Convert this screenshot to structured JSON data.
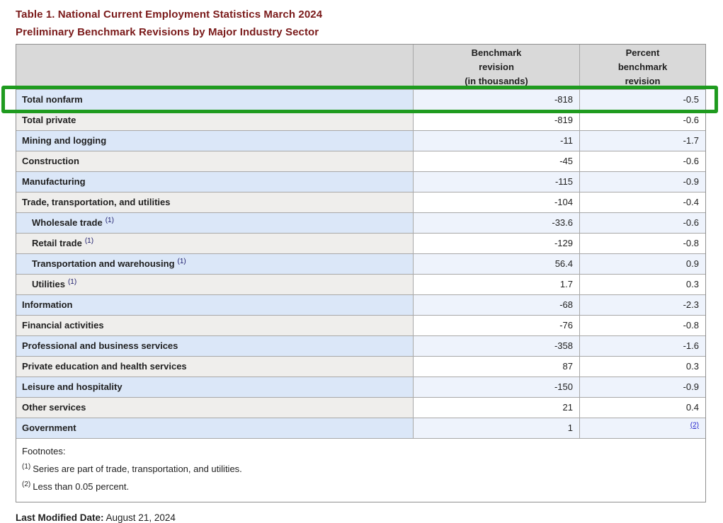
{
  "page": {
    "title_line1": "Table 1. National Current Employment Statistics March 2024",
    "title_line2": "Preliminary Benchmark Revisions by Major Industry Sector",
    "last_modified_label": "Last Modified Date:",
    "last_modified_value": "August 21, 2024"
  },
  "colors": {
    "title_maroon": "#7a1a1a",
    "header_bg": "#d9d9d9",
    "row_blue_label": "#dbe7f8",
    "row_blue_value": "#eef3fc",
    "row_grey_label": "#efeeec",
    "row_grey_value": "#ffffff",
    "highlight_green": "#1f9b1f",
    "link_blue": "#2222cc"
  },
  "highlight": {
    "target_row": "Total nonfarm",
    "color": "#1f9b1f"
  },
  "table": {
    "header": {
      "col2_lines": [
        "Benchmark",
        "revision",
        "(in thousands)"
      ],
      "col3_lines": [
        "Percent",
        "benchmark",
        "revision"
      ]
    },
    "rows": [
      {
        "label": "Total nonfarm",
        "marker": "",
        "value": "-818",
        "percent": "-0.5",
        "indent": false,
        "shade": "blue",
        "percent_link": false,
        "highlighted": true
      },
      {
        "label": "Total private",
        "marker": "",
        "value": "-819",
        "percent": "-0.6",
        "indent": false,
        "shade": "grey",
        "percent_link": false,
        "highlighted": false
      },
      {
        "label": "Mining and logging",
        "marker": "",
        "value": "-11",
        "percent": "-1.7",
        "indent": false,
        "shade": "blue",
        "percent_link": false,
        "highlighted": false
      },
      {
        "label": "Construction",
        "marker": "",
        "value": "-45",
        "percent": "-0.6",
        "indent": false,
        "shade": "grey",
        "percent_link": false,
        "highlighted": false
      },
      {
        "label": "Manufacturing",
        "marker": "",
        "value": "-115",
        "percent": "-0.9",
        "indent": false,
        "shade": "blue",
        "percent_link": false,
        "highlighted": false
      },
      {
        "label": "Trade, transportation, and utilities",
        "marker": "",
        "value": "-104",
        "percent": "-0.4",
        "indent": false,
        "shade": "grey",
        "percent_link": false,
        "highlighted": false
      },
      {
        "label": "Wholesale trade",
        "marker": "(1)",
        "value": "-33.6",
        "percent": "-0.6",
        "indent": true,
        "shade": "blue",
        "percent_link": false,
        "highlighted": false
      },
      {
        "label": "Retail trade",
        "marker": "(1)",
        "value": "-129",
        "percent": "-0.8",
        "indent": true,
        "shade": "grey",
        "percent_link": false,
        "highlighted": false
      },
      {
        "label": "Transportation and warehousing",
        "marker": "(1)",
        "value": "56.4",
        "percent": "0.9",
        "indent": true,
        "shade": "blue",
        "percent_link": false,
        "highlighted": false
      },
      {
        "label": "Utilities",
        "marker": "(1)",
        "value": "1.7",
        "percent": "0.3",
        "indent": true,
        "shade": "grey",
        "percent_link": false,
        "highlighted": false
      },
      {
        "label": "Information",
        "marker": "",
        "value": "-68",
        "percent": "-2.3",
        "indent": false,
        "shade": "blue",
        "percent_link": false,
        "highlighted": false
      },
      {
        "label": "Financial activities",
        "marker": "",
        "value": "-76",
        "percent": "-0.8",
        "indent": false,
        "shade": "grey",
        "percent_link": false,
        "highlighted": false
      },
      {
        "label": "Professional and business services",
        "marker": "",
        "value": "-358",
        "percent": "-1.6",
        "indent": false,
        "shade": "blue",
        "percent_link": false,
        "highlighted": false
      },
      {
        "label": "Private education and health services",
        "marker": "",
        "value": "87",
        "percent": "0.3",
        "indent": false,
        "shade": "grey",
        "percent_link": false,
        "highlighted": false
      },
      {
        "label": "Leisure and hospitality",
        "marker": "",
        "value": "-150",
        "percent": "-0.9",
        "indent": false,
        "shade": "blue",
        "percent_link": false,
        "highlighted": false
      },
      {
        "label": "Other services",
        "marker": "",
        "value": "21",
        "percent": "0.4",
        "indent": false,
        "shade": "grey",
        "percent_link": false,
        "highlighted": false
      },
      {
        "label": "Government",
        "marker": "",
        "value": "1",
        "percent": "(2)",
        "indent": false,
        "shade": "blue",
        "percent_link": true,
        "highlighted": false
      }
    ]
  },
  "footnotes": {
    "heading": "Footnotes:",
    "items": [
      {
        "marker": "(1)",
        "text": "Series are part of trade, transportation, and utilities."
      },
      {
        "marker": "(2)",
        "text": "Less than 0.05 percent."
      }
    ]
  }
}
